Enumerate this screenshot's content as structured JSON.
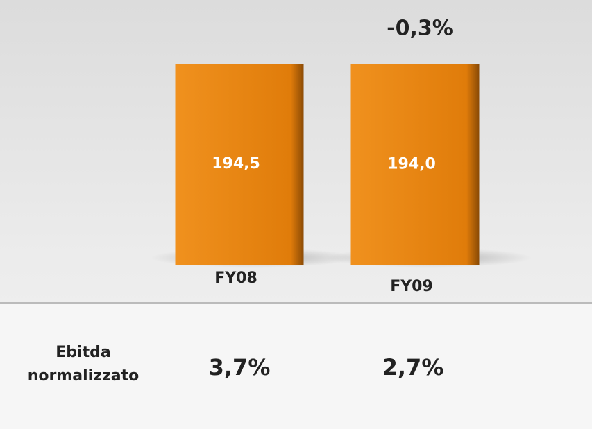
{
  "chart_data": {
    "type": "bar",
    "categories": [
      "FY08",
      "FY09"
    ],
    "values": [
      194.5,
      194.0
    ],
    "value_labels": [
      "194,5",
      "194,0"
    ],
    "color": "#e8820c",
    "annotation": "-0,3%",
    "table_row": {
      "label": "Ebitda normalizzato",
      "values": [
        3.7,
        2.7
      ],
      "value_labels": [
        "3,7%",
        "2,7%"
      ]
    }
  }
}
